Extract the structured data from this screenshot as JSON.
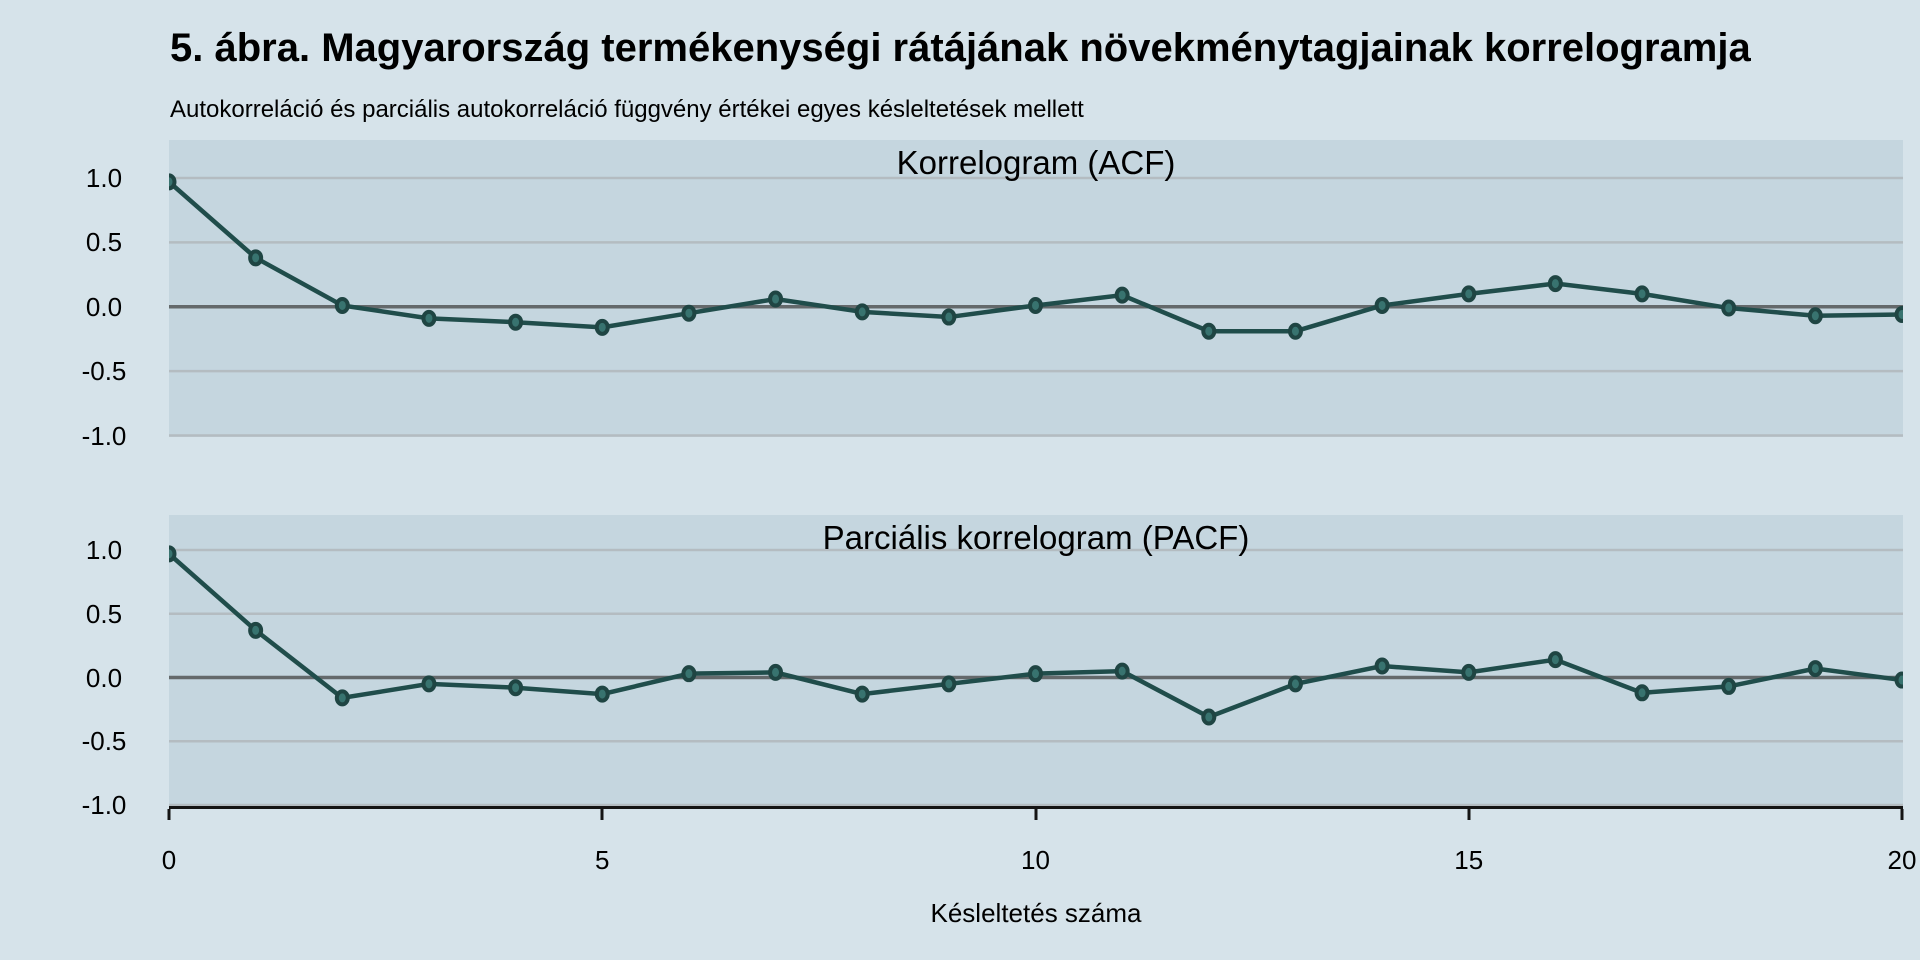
{
  "figure": {
    "title": "5. ábra. Magyarország termékenységi rátájának növekménytagjainak korrelogramja",
    "subtitle": "Autokorreláció és parciális autokorreláció függvény értékei egyes késleltetések mellett"
  },
  "x_axis": {
    "label": "Késleltetés száma",
    "ticks": [
      0,
      5,
      10,
      15,
      20
    ],
    "tick_labels": [
      "0",
      "5",
      "10",
      "15",
      "20"
    ],
    "range": [
      0,
      20
    ]
  },
  "colors": {
    "background": "#d6e3ea",
    "plot_background": "#c5d6df",
    "gridline": "#b4bcc1",
    "zero_line": "#64696b",
    "axis_line": "#141414",
    "series_line": "#204d4b",
    "marker_fill": "#38736f",
    "marker_border": "#1f4543",
    "text": "#000000"
  },
  "chart_data": [
    {
      "type": "line",
      "title": "Korrelogram (ACF)",
      "series_name": "ACF",
      "x": [
        0,
        1,
        2,
        3,
        4,
        5,
        6,
        7,
        8,
        9,
        10,
        11,
        12,
        13,
        14,
        15,
        16,
        17,
        18,
        19,
        20
      ],
      "values": [
        0.97,
        0.38,
        0.01,
        -0.09,
        -0.12,
        -0.16,
        -0.05,
        0.06,
        -0.04,
        -0.08,
        0.01,
        0.09,
        -0.19,
        -0.19,
        0.01,
        0.1,
        0.18,
        0.1,
        -0.01,
        -0.07,
        -0.06
      ],
      "ylim": [
        -1,
        1
      ],
      "yticks": [
        1.0,
        0.5,
        0.0,
        -0.5,
        -1.0
      ],
      "ytick_labels": [
        "1.0",
        "0.5",
        "0.0",
        "-0.5",
        "-1.0"
      ],
      "grid": "horizontal",
      "zero_line": true,
      "legend": "none"
    },
    {
      "type": "line",
      "title": "Parciális korrelogram (PACF)",
      "series_name": "PACF",
      "x": [
        0,
        1,
        2,
        3,
        4,
        5,
        6,
        7,
        8,
        9,
        10,
        11,
        12,
        13,
        14,
        15,
        16,
        17,
        18,
        19,
        20
      ],
      "values": [
        0.97,
        0.37,
        -0.16,
        -0.05,
        -0.08,
        -0.13,
        0.03,
        0.04,
        -0.13,
        -0.05,
        0.03,
        0.05,
        -0.31,
        -0.05,
        0.09,
        0.04,
        0.14,
        -0.12,
        -0.07,
        0.07,
        -0.02
      ],
      "ylim": [
        -1,
        1
      ],
      "yticks": [
        1.0,
        0.5,
        0.0,
        -0.5,
        -1.0
      ],
      "ytick_labels": [
        "1.0",
        "0.5",
        "0.0",
        "-0.5",
        "-1.0"
      ],
      "grid": "horizontal",
      "zero_line": true,
      "legend": "none"
    }
  ]
}
